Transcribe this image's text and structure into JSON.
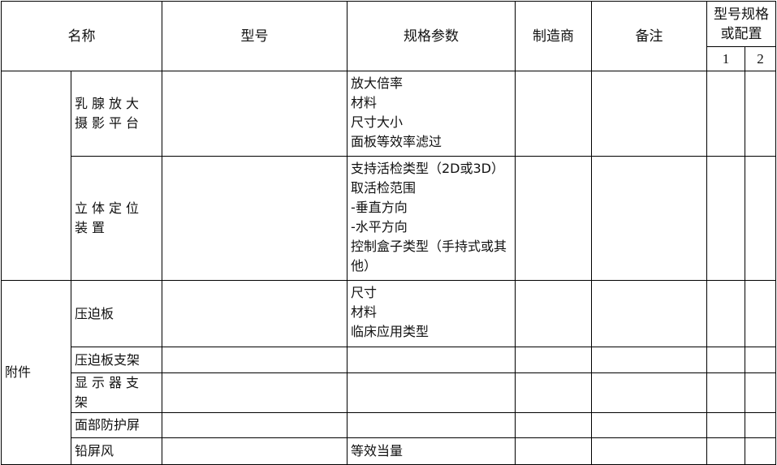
{
  "header": {
    "name": "名称",
    "model": "型号",
    "spec": "规格参数",
    "maker": "制造商",
    "note": "备注",
    "config": "型号规格或配置",
    "config_1": "1",
    "config_2": "2"
  },
  "rows": [
    {
      "group": "",
      "name": "乳腺放大摄影平台",
      "spec": [
        "放大倍率",
        "材料",
        "尺寸大小",
        "面板等效率滤过"
      ]
    },
    {
      "name": "立体定位装置",
      "spec": [
        "支持活检类型（2D或3D）",
        "取活检范围",
        "-垂直方向",
        "-水平方向",
        "控制盒子类型（手持式或其他）"
      ]
    },
    {
      "group": "附件",
      "name": "压迫板",
      "spec": [
        "尺寸",
        "材料",
        "临床应用类型"
      ]
    },
    {
      "name": "压迫板支架",
      "spec": []
    },
    {
      "name": "显示器支架",
      "spec": []
    },
    {
      "name": "面部防护屏",
      "spec": []
    },
    {
      "name": "铅屏风",
      "spec": [
        "等效当量"
      ]
    }
  ]
}
